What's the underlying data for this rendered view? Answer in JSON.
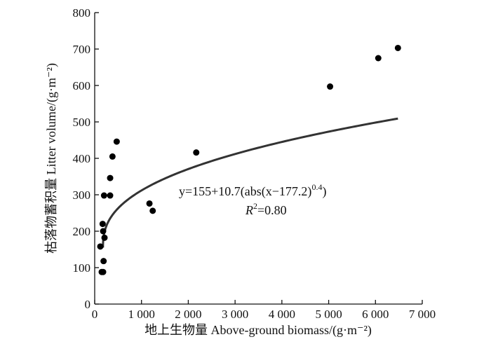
{
  "chart_data": {
    "type": "scatter",
    "xlabel": "地上生物量 Above-ground biomass/(g·m⁻²)",
    "ylabel": "枯落物蓄积量 Litter volume/(g·m⁻²)",
    "xlim": [
      0,
      7000
    ],
    "ylim": [
      0,
      800
    ],
    "x_ticks": [
      0,
      1000,
      2000,
      3000,
      4000,
      5000,
      6000,
      7000
    ],
    "x_tick_labels": [
      "0",
      "1 000",
      "2 000",
      "3 000",
      "4 000",
      "5 000",
      "6 000",
      "7 000"
    ],
    "y_ticks": [
      0,
      100,
      200,
      300,
      400,
      500,
      600,
      700,
      800
    ],
    "y_tick_labels": [
      "0",
      "100",
      "200",
      "300",
      "400",
      "500",
      "600",
      "700",
      "800"
    ],
    "points": [
      {
        "x": 120,
        "y": 158
      },
      {
        "x": 150,
        "y": 88
      },
      {
        "x": 180,
        "y": 88
      },
      {
        "x": 170,
        "y": 220
      },
      {
        "x": 180,
        "y": 200
      },
      {
        "x": 210,
        "y": 182
      },
      {
        "x": 190,
        "y": 118
      },
      {
        "x": 200,
        "y": 298
      },
      {
        "x": 330,
        "y": 298
      },
      {
        "x": 330,
        "y": 346
      },
      {
        "x": 380,
        "y": 405
      },
      {
        "x": 470,
        "y": 446
      },
      {
        "x": 1170,
        "y": 276
      },
      {
        "x": 1240,
        "y": 256
      },
      {
        "x": 2170,
        "y": 416
      },
      {
        "x": 5030,
        "y": 597
      },
      {
        "x": 6060,
        "y": 675
      },
      {
        "x": 6480,
        "y": 703
      }
    ],
    "fit": {
      "a": 155,
      "b": 10.7,
      "c": 177.2,
      "p": 0.4,
      "x_range": [
        177.2,
        6480
      ]
    },
    "equation": "y=155+10.7(abs(x−177.2)",
    "equation_exponent": "0.4",
    "equation_close": ")",
    "r_squared_label": "R",
    "r_squared_sup": "2",
    "r_squared_value": "=0.80",
    "grid": false
  }
}
